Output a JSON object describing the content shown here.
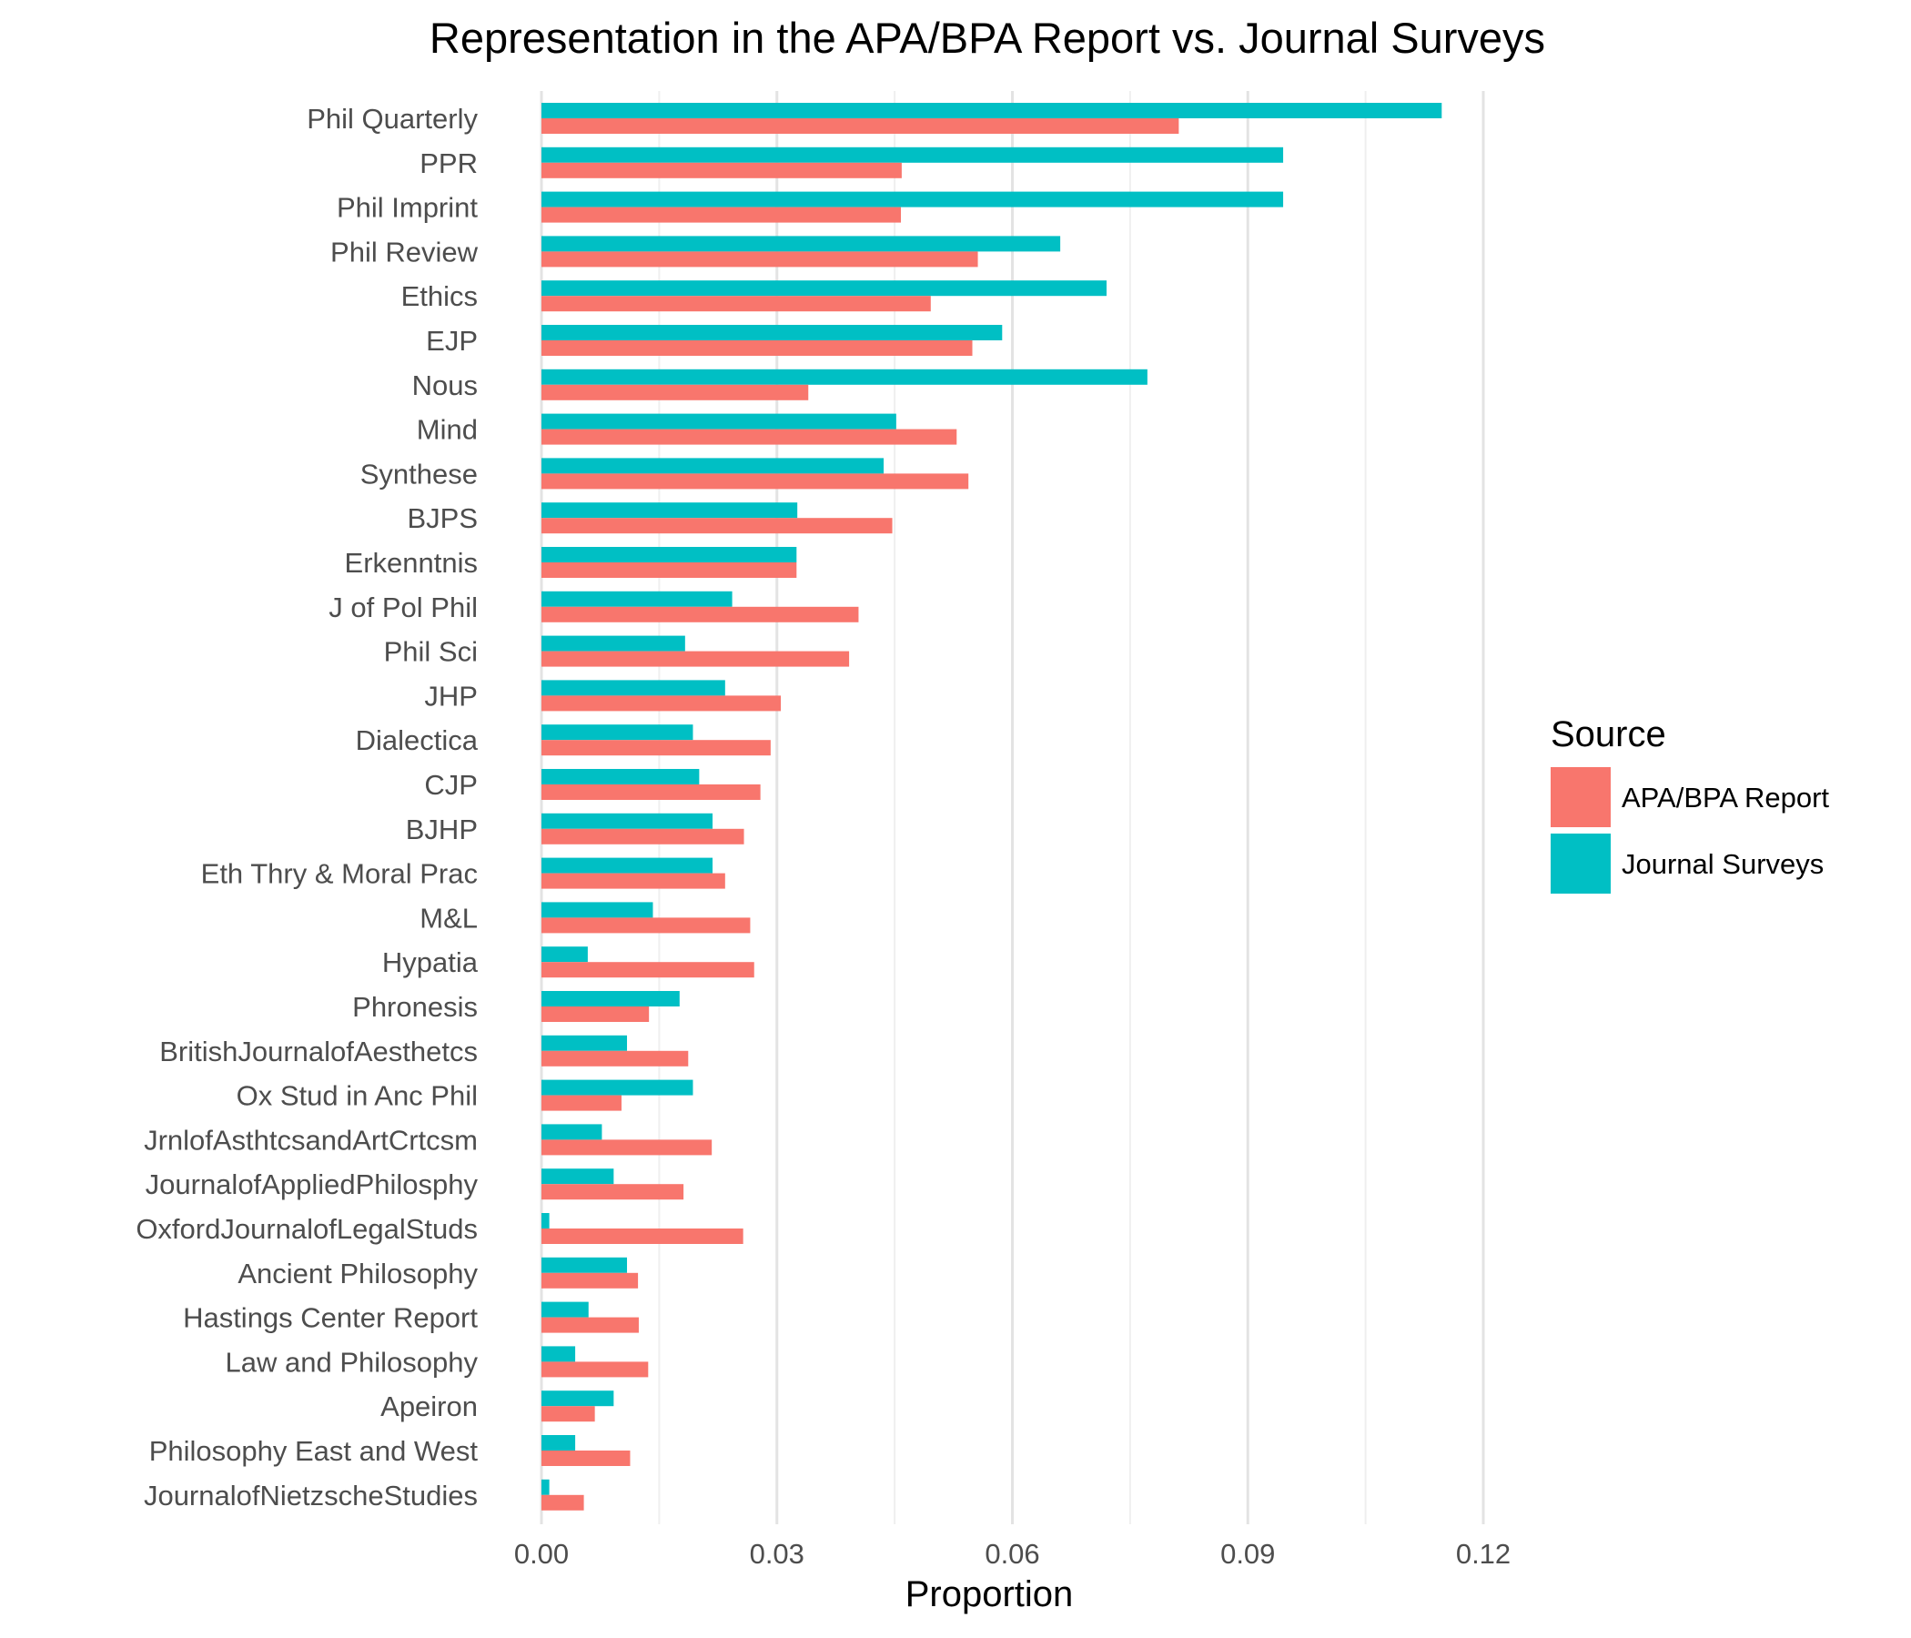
{
  "chart_data": {
    "type": "bar",
    "orientation": "horizontal",
    "title": "Representation in the APA/BPA Report vs. Journal Surveys",
    "xlabel": "Proportion",
    "ylabel": "",
    "xlim": [
      0,
      0.12
    ],
    "xticks": [
      0.0,
      0.03,
      0.06,
      0.09,
      0.12
    ],
    "xtick_labels": [
      "0.00",
      "0.03",
      "0.06",
      "0.09",
      "0.12"
    ],
    "grid": true,
    "legend": {
      "title": "Source",
      "position": "right"
    },
    "categories": [
      "Phil Quarterly",
      "PPR",
      "Phil Imprint",
      "Phil Review",
      "Ethics",
      "EJP",
      "Nous",
      "Mind",
      "Synthese",
      "BJPS",
      "Erkenntnis",
      "J of Pol Phil",
      "Phil Sci",
      "JHP",
      "Dialectica",
      "CJP",
      "BJHP",
      "Eth Thry & Moral Prac",
      "M&L",
      "Hypatia",
      "Phronesis",
      "BritishJournalofAesthetcs",
      "Ox Stud in Anc Phil",
      "JrnlofAsthtcsandArtCrtcsm",
      "JournalofAppliedPhilosphy",
      "OxfordJournalofLegalStuds",
      "Ancient Philosophy",
      "Hastings Center Report",
      "Law and Philosophy",
      "Apeiron",
      "Philosophy East and West",
      "JournalofNietzscheStudies"
    ],
    "series": [
      {
        "name": "APA/BPA Report",
        "color": "#F8766D",
        "values": [
          0.0812,
          0.0459,
          0.0458,
          0.0556,
          0.0496,
          0.0549,
          0.034,
          0.0529,
          0.0544,
          0.0447,
          0.0325,
          0.0404,
          0.0392,
          0.0305,
          0.0292,
          0.0279,
          0.0258,
          0.0234,
          0.0266,
          0.0271,
          0.0137,
          0.0187,
          0.0102,
          0.0217,
          0.0181,
          0.0257,
          0.0123,
          0.0124,
          0.0136,
          0.0068,
          0.0113,
          0.0054
        ]
      },
      {
        "name": "Journal Surveys",
        "color": "#00BFC4",
        "values": [
          0.1147,
          0.0945,
          0.0945,
          0.0661,
          0.072,
          0.0587,
          0.0772,
          0.0452,
          0.0436,
          0.0326,
          0.0325,
          0.0243,
          0.0183,
          0.0234,
          0.0193,
          0.0201,
          0.0218,
          0.0218,
          0.0142,
          0.0059,
          0.0176,
          0.0109,
          0.0193,
          0.0077,
          0.0092,
          0.001,
          0.0109,
          0.006,
          0.0043,
          0.0092,
          0.0043,
          0.001
        ]
      }
    ]
  }
}
